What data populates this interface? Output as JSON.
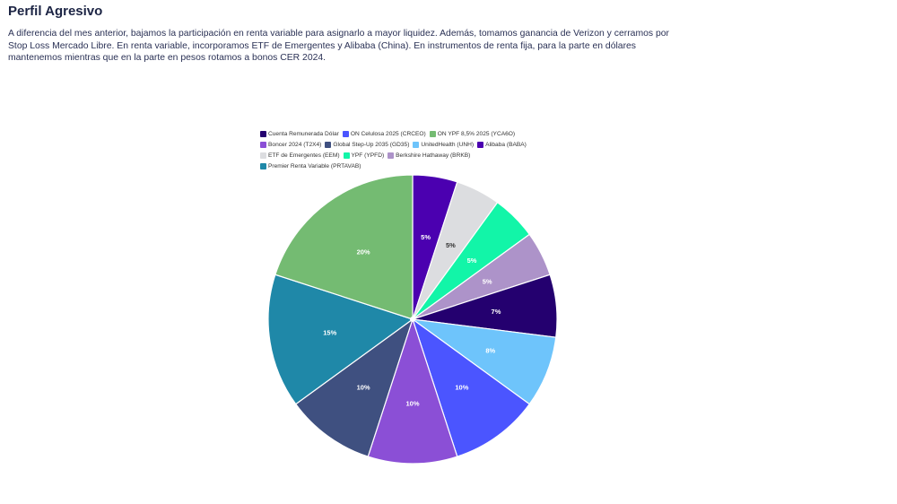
{
  "page": {
    "title": "Perfil Agresivo",
    "description": "A diferencia del mes anterior, bajamos la participación en renta variable para asignarlo a mayor liquidez. Además, tomamos ganancia de Verizon y cerramos por Stop Loss Mercado Libre. En renta variable, incorporamos ETF de Emergentes y Alibaba (China). En instrumentos de renta fija, para la parte en dólares mantenemos mientras que en la parte en pesos rotamos a bonos CER 2024."
  },
  "chart_data": {
    "type": "pie",
    "legend_position": "top",
    "slices": [
      {
        "name": "Alibaba (BABA)",
        "value": 5,
        "label": "5%",
        "color": "#4b00b0",
        "label_color": "#ffffff"
      },
      {
        "name": "ETF de Emergentes (EEM)",
        "value": 5,
        "label": "5%",
        "color": "#dcdde0",
        "label_color": "#333333"
      },
      {
        "name": "YPF (YPFD)",
        "value": 5,
        "label": "5%",
        "color": "#12f5a8",
        "label_color": "#ffffff"
      },
      {
        "name": "Berkshire Hathaway (BRKB)",
        "value": 5,
        "label": "5%",
        "color": "#ad93c9",
        "label_color": "#ffffff"
      },
      {
        "name": "Cuenta Remunerada Dólar",
        "value": 7,
        "label": "7%",
        "color": "#24006f",
        "label_color": "#ffffff"
      },
      {
        "name": "UnitedHealth (UNH)",
        "value": 8,
        "label": "8%",
        "color": "#6ec4fb",
        "label_color": "#ffffff"
      },
      {
        "name": "ON Celulosa 2025 (CRCEO)",
        "value": 10,
        "label": "10%",
        "color": "#4b55ff",
        "label_color": "#ffffff"
      },
      {
        "name": "Boncer 2024 (T2X4)",
        "value": 10,
        "label": "10%",
        "color": "#8b4fd6",
        "label_color": "#ffffff"
      },
      {
        "name": "Global Step-Up 2035 (GD35)",
        "value": 10,
        "label": "10%",
        "color": "#3f5080",
        "label_color": "#ffffff"
      },
      {
        "name": "Premier Renta Variable (PRTAVAB)",
        "value": 15,
        "label": "15%",
        "color": "#1f88a8",
        "label_color": "#ffffff"
      },
      {
        "name": "ON YPF 8,5% 2025 (YCA6O)",
        "value": 20,
        "label": "20%",
        "color": "#74bb72",
        "label_color": "#ffffff"
      }
    ],
    "legend": [
      {
        "name": "Cuenta Remunerada Dólar",
        "color": "#24006f"
      },
      {
        "name": "ON Celulosa 2025 (CRCEO)",
        "color": "#4b55ff"
      },
      {
        "name": "ON YPF 8,5% 2025 (YCA6O)",
        "color": "#74bb72"
      },
      {
        "name": "Boncer 2024 (T2X4)",
        "color": "#8b4fd6"
      },
      {
        "name": "Global Step-Up 2035 (GD35)",
        "color": "#3f5080"
      },
      {
        "name": "UnitedHealth (UNH)",
        "color": "#6ec4fb"
      },
      {
        "name": "Alibaba (BABA)",
        "color": "#4b00b0"
      },
      {
        "name": "ETF de Emergentes (EEM)",
        "color": "#dcdde0"
      },
      {
        "name": "YPF (YPFD)",
        "color": "#12f5a8"
      },
      {
        "name": "Berkshire Hathaway (BRKB)",
        "color": "#ad93c9"
      },
      {
        "name": "Premier Renta Variable (PRTAVAB)",
        "color": "#1f88a8"
      }
    ]
  }
}
